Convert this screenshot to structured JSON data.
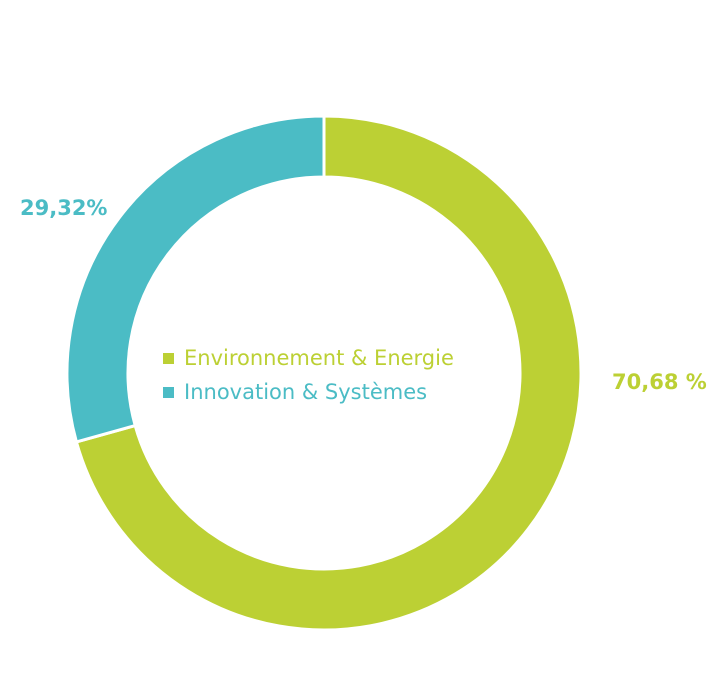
{
  "chart_data": {
    "type": "pie",
    "variant": "donut",
    "categories": [
      "Environnement & Energie",
      "Innovation & Systèmes"
    ],
    "values": [
      70.68,
      29.32
    ],
    "data_labels": [
      "70,68 %",
      "29,32%"
    ],
    "colors": [
      "#bcd034",
      "#4bbcc5"
    ],
    "legend": {
      "placement": "center",
      "items": [
        {
          "label": "Environnement & Energie",
          "color": "#bcd034"
        },
        {
          "label": "Innovation & Systèmes",
          "color": "#4bbcc5"
        }
      ]
    }
  }
}
